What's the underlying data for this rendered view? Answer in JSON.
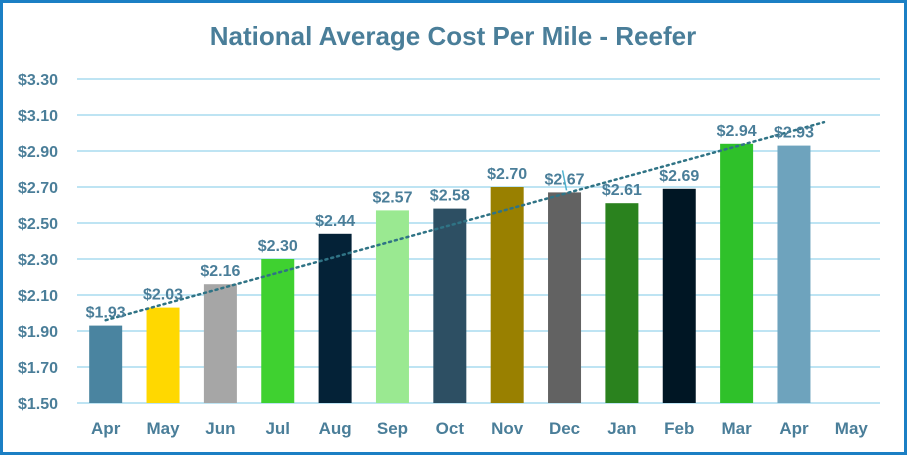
{
  "chart_data": {
    "type": "bar",
    "title": "National Average Cost Per Mile - Reefer",
    "xlabel": "",
    "ylabel": "",
    "categories": [
      "Apr",
      "May",
      "Jun",
      "Jul",
      "Aug",
      "Sep",
      "Oct",
      "Nov",
      "Dec",
      "Jan",
      "Feb",
      "Mar",
      "Apr",
      "May"
    ],
    "values": [
      1.93,
      2.03,
      2.16,
      2.3,
      2.44,
      2.57,
      2.58,
      2.7,
      2.67,
      2.61,
      2.69,
      2.94,
      2.93,
      null
    ],
    "data_labels": [
      "$1.93",
      "$2.03",
      "$2.16",
      "$2.30",
      "$2.44",
      "$2.57",
      "$2.58",
      "$2.70",
      "$2.67",
      "$2.61",
      "$2.69",
      "$2.94",
      "$2.93",
      ""
    ],
    "bar_colors": [
      "#4a84a0",
      "#ffd800",
      "#a6a6a6",
      "#3fd130",
      "#042237",
      "#9ae991",
      "#2d4f63",
      "#998000",
      "#626262",
      "#2a821e",
      "#001624",
      "#2fc12a",
      "#6ea3bd",
      "#ffffff"
    ],
    "ylim": [
      1.5,
      3.3
    ],
    "yticks": [
      1.5,
      1.7,
      1.9,
      2.1,
      2.3,
      2.5,
      2.7,
      2.9,
      3.1,
      3.3
    ],
    "ytick_labels": [
      "$1.50",
      "$1.70",
      "$1.90",
      "$2.10",
      "$2.30",
      "$2.50",
      "$2.70",
      "$2.90",
      "$3.10",
      "$3.30"
    ],
    "grid": true,
    "trendline": {
      "type": "linear",
      "style": "dotted",
      "color": "#2f7385",
      "start": 1.96,
      "end": 3.06
    },
    "colors": {
      "title": "#4a7e99",
      "grid": "#a9dcef",
      "border": "#1b7fc4"
    }
  }
}
